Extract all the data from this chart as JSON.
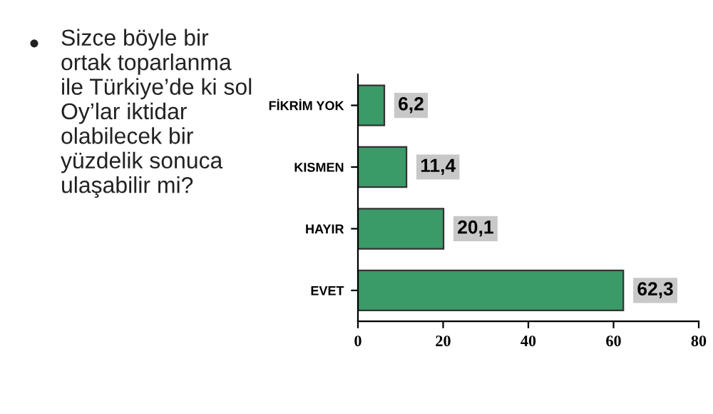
{
  "chart_data": {
    "type": "bar",
    "orientation": "horizontal",
    "categories": [
      "FİKRİM YOK",
      "KISMEN",
      "HAYIR",
      "EVET"
    ],
    "values": [
      6.2,
      11.4,
      20.1,
      62.3
    ],
    "value_labels": [
      "6,2",
      "11,4",
      "20,1",
      "62,3"
    ],
    "color": "#3a9a68",
    "xlim": [
      0,
      80
    ],
    "xticks": [
      0,
      20,
      40,
      60,
      80
    ],
    "grid": false,
    "legend": false,
    "annotations": [
      "Sizce böyle bir\nortak toparlanma\nile Türkiye’de ki sol\nOy’lar iktidar\nolabilecek bir\nyüzdelik sonuca\nulaşabilir mi?"
    ]
  }
}
